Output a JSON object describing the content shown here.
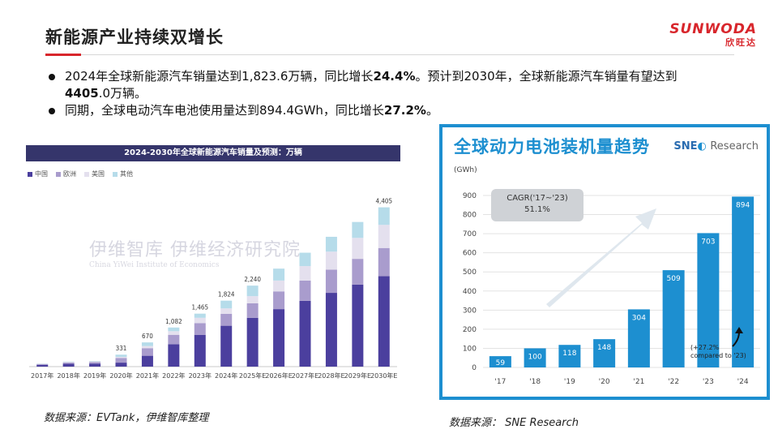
{
  "slide": {
    "title": "新能源产业持续双增长",
    "brand": {
      "name": "SUNWODA",
      "sub": "欣旺达"
    },
    "bullets": {
      "b1_part1": "2024年全球新能源汽车销量达到1,823.6万辆，同比增长",
      "b1_bold1": "24.4%",
      "b1_part2": "。预计到2030年，全球新能源汽车销量有望达到",
      "b1_bold2": "4405",
      "b1_part3": ".0万辆。",
      "b2_part1": "同期，全球电动汽车电池使用量达到894.4GWh，同比增长",
      "b2_bold1": "27.2%",
      "b2_part2": "。"
    },
    "source_left": "数据来源：EVTank，伊维智库整理",
    "source_right": "数据来源： SNE Research"
  },
  "left": {
    "header": "2024-2030年全球新能源汽车销量及预测：万辆",
    "legend": [
      "中国",
      "欧洲",
      "美国",
      "其他"
    ],
    "watermark": "伊维经济研究院",
    "watermark_logo": "伊维智库",
    "watermark_sub": "China YiWei Institute of Economics"
  },
  "right": {
    "title": "全球动力电池装机量趋势",
    "logo_sne": "SNE",
    "logo_research": "Research",
    "unit": "(GWh)",
    "cagr_label": "CAGR('17~'23)",
    "cagr_value": "51.1%",
    "yoy_line1": "(+27.2%",
    "yoy_line2": "compared to '23)"
  },
  "colors": {
    "accent_red": "#d8262c",
    "china": "#4b3f9e",
    "europe": "#a99ccd",
    "usa": "#e4e0ee",
    "other": "#b6dcea",
    "battery_blue": "#1d8fd0"
  },
  "chart_data": [
    {
      "type": "bar",
      "stacked": true,
      "title": "2024-2030年全球新能源汽车销量及预测：万辆",
      "categories": [
        "2017年",
        "2018年",
        "2019年",
        "2020年",
        "2021年",
        "2022年",
        "2023年",
        "2024年",
        "2025年E",
        "2026年E",
        "2027年E",
        "2028年E",
        "2029年E",
        "2030年E"
      ],
      "totals": [
        "",
        "",
        "",
        "331",
        "670",
        "1,082",
        "1,465",
        "1,824",
        "2,240",
        "",
        "",
        "",
        "",
        "4,405"
      ],
      "series": [
        {
          "name": "中国",
          "values": [
            50,
            80,
            85,
            110,
            300,
            620,
            880,
            1130,
            1350,
            1590,
            1820,
            2040,
            2270,
            2500
          ]
        },
        {
          "name": "欧洲",
          "values": [
            20,
            30,
            40,
            130,
            210,
            260,
            320,
            330,
            400,
            490,
            560,
            640,
            710,
            780
          ]
        },
        {
          "name": "美国",
          "values": [
            10,
            20,
            20,
            30,
            60,
            100,
            150,
            150,
            200,
            300,
            400,
            500,
            580,
            640
          ]
        },
        {
          "name": "其他",
          "values": [
            7,
            10,
            10,
            61,
            100,
            102,
            115,
            214,
            290,
            330,
            370,
            410,
            440,
            485
          ]
        }
      ],
      "ylim": [
        0,
        4800
      ]
    },
    {
      "type": "bar",
      "title": "全球动力电池装机量趋势",
      "categories": [
        "'17",
        "'18",
        "'19",
        "'20",
        "'21",
        "'22",
        "'23",
        "'24"
      ],
      "values": [
        59,
        100,
        118,
        148,
        304,
        509,
        703,
        894
      ],
      "ylabel": "(GWh)",
      "yticks": [
        "0",
        "100",
        "200",
        "300",
        "400",
        "500",
        "600",
        "700",
        "800",
        "900"
      ],
      "ylim": [
        0,
        900
      ]
    }
  ]
}
